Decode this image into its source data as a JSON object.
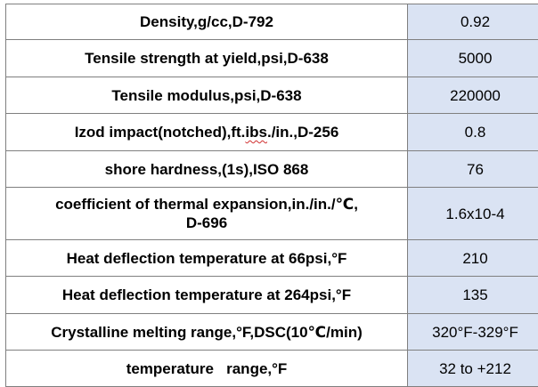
{
  "properties": [
    {
      "label": "Density,g/cc,D-792",
      "value": "0.92"
    },
    {
      "label": "Tensile strength at yield,psi,D-638",
      "value": "5000"
    },
    {
      "label": "Tensile modulus,psi,D-638",
      "value": "220000"
    },
    {
      "label_before": "Izod impact(notched),ft.",
      "label_flagged": "ibs",
      "label_after": "./in.,D-256",
      "value": "0.8"
    },
    {
      "label": "shore hardness,(1s),ISO 868",
      "value": "76"
    },
    {
      "label_line1": "coefficient of thermal expansion,in./in./℃,",
      "label_line2": "D-696",
      "value": "1.6x10-4"
    },
    {
      "label": "Heat deflection temperature at 66psi,°F",
      "value": "210"
    },
    {
      "label": "Heat deflection temperature at 264psi,°F",
      "value": "135"
    },
    {
      "label": "Crystalline melting range,°F,DSC(10℃/min)",
      "value": "320°F-329°F"
    },
    {
      "label": "temperature   range,°F",
      "value": "32 to +212"
    }
  ]
}
